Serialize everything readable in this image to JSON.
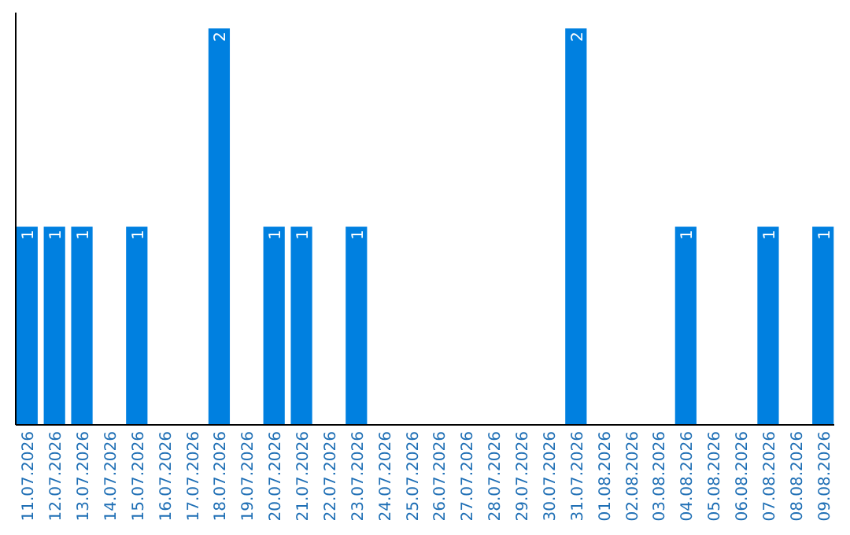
{
  "chart_data": {
    "type": "bar",
    "categories": [
      "11.07.2026",
      "12.07.2026",
      "13.07.2026",
      "14.07.2026",
      "15.07.2026",
      "16.07.2026",
      "17.07.2026",
      "18.07.2026",
      "19.07.2026",
      "20.07.2026",
      "21.07.2026",
      "22.07.2026",
      "23.07.2026",
      "24.07.2026",
      "25.07.2026",
      "26.07.2026",
      "27.07.2026",
      "28.07.2026",
      "29.07.2026",
      "30.07.2026",
      "31.07.2026",
      "01.08.2026",
      "02.08.2026",
      "03.08.2026",
      "04.08.2026",
      "05.08.2026",
      "06.08.2026",
      "07.08.2026",
      "08.08.2026",
      "09.08.2026"
    ],
    "values": [
      1,
      1,
      1,
      0,
      1,
      0,
      0,
      2,
      0,
      1,
      1,
      0,
      1,
      0,
      0,
      0,
      0,
      0,
      0,
      0,
      2,
      0,
      0,
      0,
      1,
      0,
      0,
      1,
      0,
      1
    ],
    "value_labels": [
      "1",
      "1",
      "1",
      null,
      "1",
      null,
      null,
      "2",
      null,
      "1",
      "1",
      null,
      "1",
      null,
      null,
      null,
      null,
      null,
      null,
      null,
      "2",
      null,
      null,
      null,
      "1",
      null,
      null,
      "1",
      null,
      "1"
    ],
    "color": "#0080e0",
    "ylim": [
      0,
      2.08
    ],
    "tick_labels": "x"
  }
}
